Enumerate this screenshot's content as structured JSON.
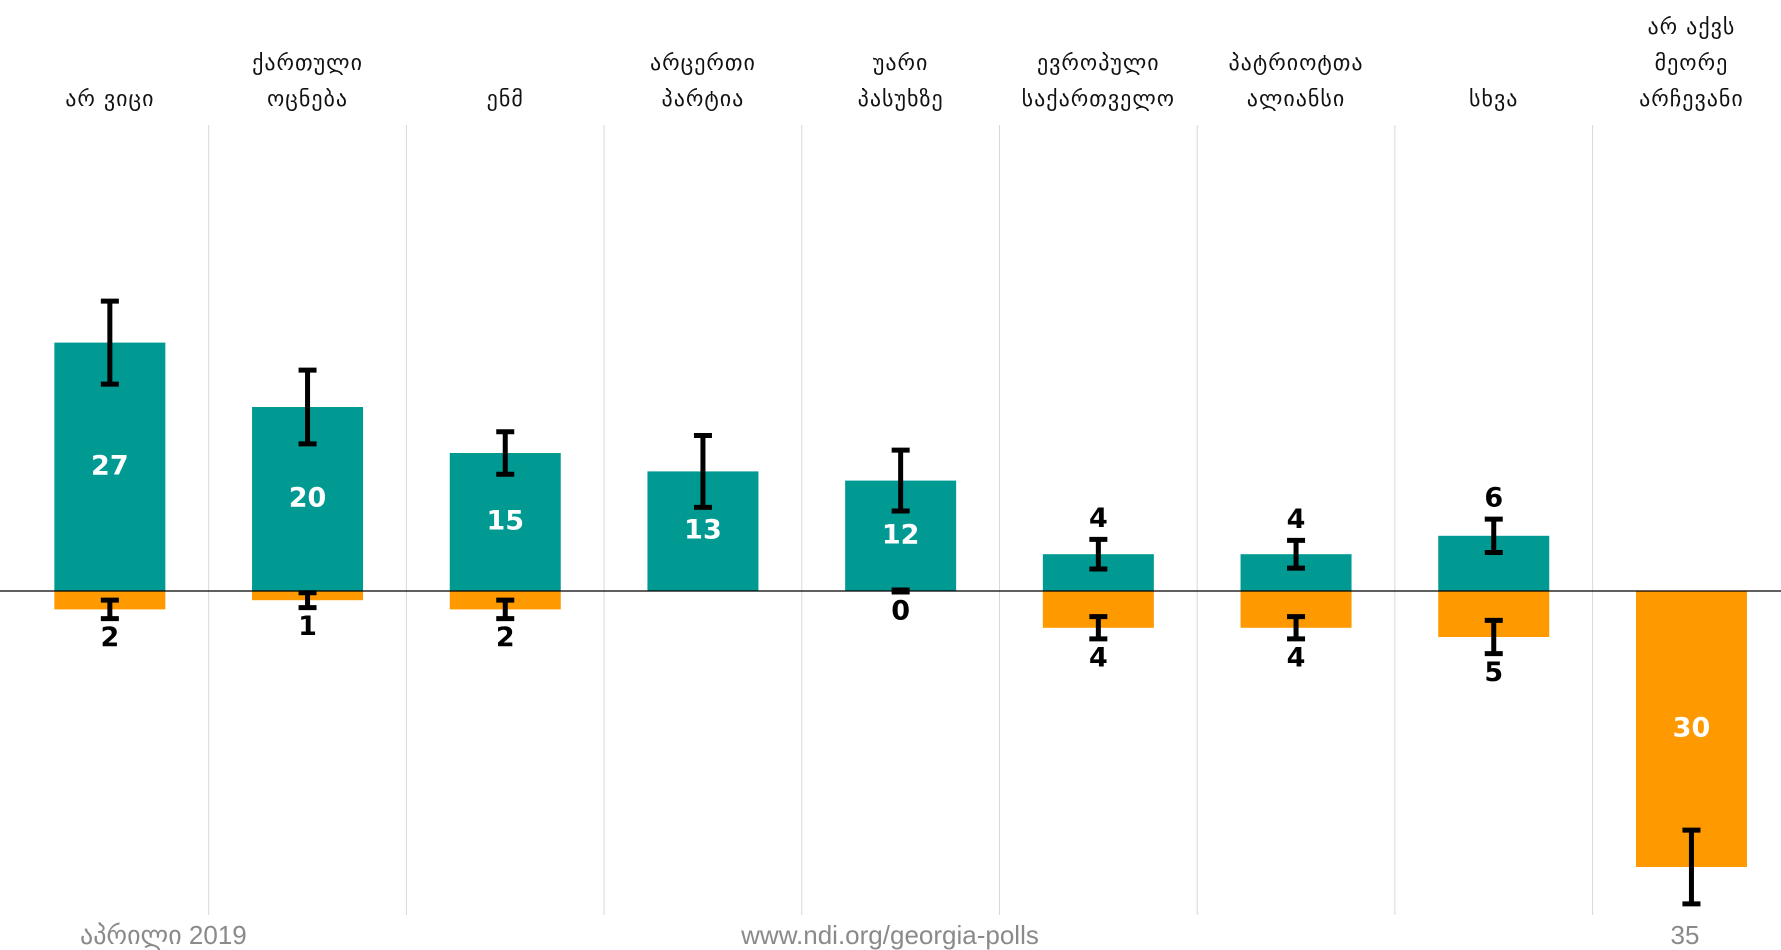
{
  "chart_data": {
    "type": "bar",
    "categories": [
      [
        "არ ვიცი"
      ],
      [
        "ქართული",
        "ოცნება"
      ],
      [
        "ენმ"
      ],
      [
        "არცერთი",
        "პარტია"
      ],
      [
        "უარი",
        "პასუხზე"
      ],
      [
        "ევროპული",
        "საქართველო"
      ],
      [
        "პატრიოტთა",
        "ალიანსი"
      ],
      [
        "სხვა"
      ],
      [
        "არ აქვს",
        "მეორე",
        "არჩევანი"
      ]
    ],
    "series": [
      {
        "color": "#009a93",
        "values": [
          27,
          20,
          15,
          13,
          12,
          4,
          4,
          6,
          null
        ],
        "errors": [
          4.4,
          3.9,
          2.2,
          3.8,
          3.2,
          1.5,
          1.4,
          1.7,
          null
        ]
      },
      {
        "color": "#ff9900",
        "values": [
          2,
          1,
          2,
          null,
          0,
          4,
          4,
          5,
          30
        ],
        "errors": [
          0.9,
          0.7,
          0.9,
          null,
          0,
          1.1,
          1.1,
          1.7,
          3.9
        ]
      }
    ],
    "grid": true
  },
  "footer": {
    "date": "აპრილი 2019",
    "url": "www.ndi.org/georgia-polls",
    "page": "35"
  }
}
